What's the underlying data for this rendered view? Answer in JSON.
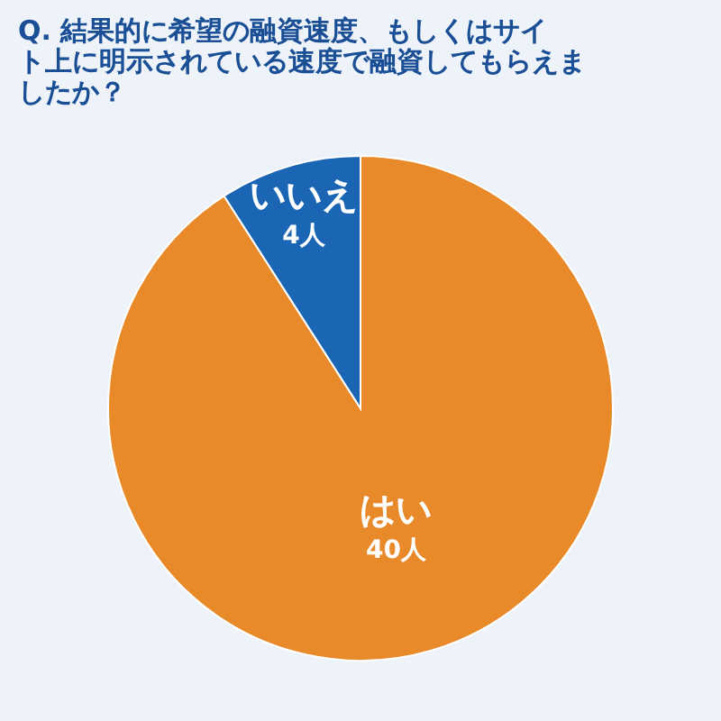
{
  "chart_data": {
    "type": "pie",
    "title": "Q. 結果的に希望の融資速度、もしくはサイト上に明示されている速度で融資してもらえましたか？",
    "categories": [
      "はい",
      "いいえ"
    ],
    "values": [
      40,
      4
    ],
    "colors": [
      "#e8892a",
      "#1a66b5"
    ],
    "value_labels": [
      "40人",
      "4人"
    ],
    "legend": false
  }
}
